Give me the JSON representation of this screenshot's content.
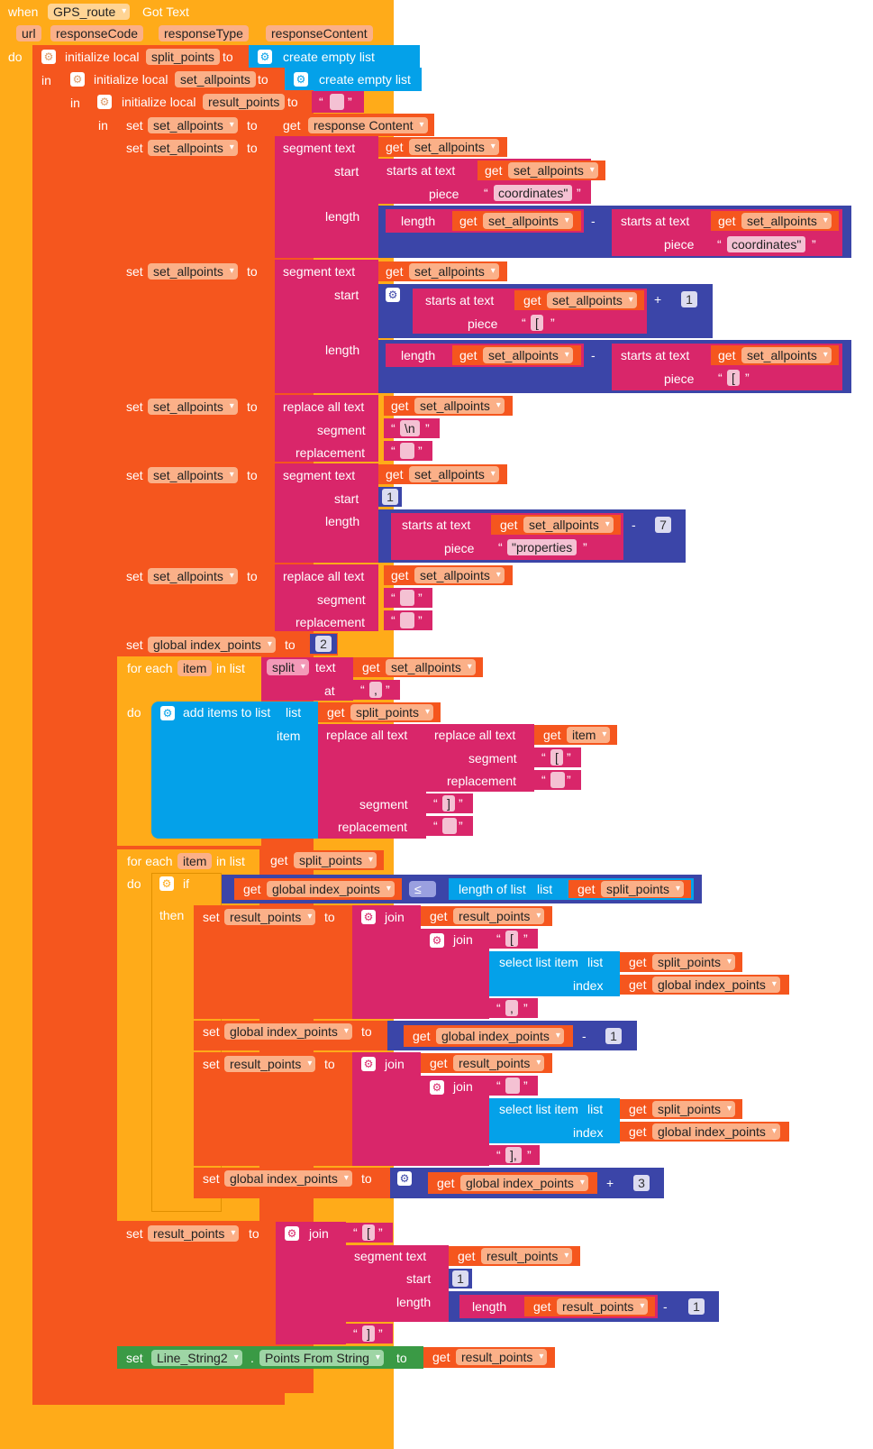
{
  "event": {
    "when": "when",
    "component": "GPS_route",
    "event_name": "Got Text",
    "params": [
      "url",
      "responseCode",
      "responseType",
      "responseContent"
    ],
    "do": "do"
  },
  "kw": {
    "in": "in",
    "to": "to",
    "set": "set",
    "get": "get",
    "init_local": "initialize local",
    "create_empty_list": "create empty list",
    "segment_text": "segment text",
    "start": "start",
    "length_label": "length",
    "starts_at_text": "starts at text",
    "piece": "piece",
    "length": "length",
    "replace_all_text": "replace all text",
    "segment": "segment",
    "replacement": "replacement",
    "for_each": "for each",
    "in_list": "in list",
    "split": "split",
    "text": "text",
    "at": "at",
    "do": "do",
    "add_items_to_list": "add items to list",
    "list": "list",
    "item_label": "item",
    "if": "if",
    "then": "then",
    "le": "≤",
    "length_of_list": "length of list",
    "join": "join",
    "select_list_item": "select list item",
    "index": "index",
    "minus": "-",
    "plus": "+",
    "dot": ".",
    "open_q": "“",
    "close_q": "”"
  },
  "vars": {
    "split_points": "split_points",
    "set_allpoints": "set_allpoints",
    "result_points": "result_points",
    "response_content": "response Content",
    "global_index_points": "global index_points",
    "item": "item"
  },
  "strings": {
    "empty": "",
    "coordinates": "coordinates\"",
    "lbracket": "[",
    "newline": "\\n",
    "properties": "\"properties",
    "comma": ",",
    "rbracket": "]",
    "close_arr": "],"
  },
  "nums": {
    "one": "1",
    "two": "2",
    "three": "3",
    "seven": "7"
  },
  "final": {
    "component": "Line_String2",
    "property": "Points From String"
  },
  "colors": {
    "event": "#ffab19",
    "variables": "#f5561e",
    "text": "#d9266a",
    "math": "#3b45a8",
    "lists": "#04a1e9",
    "component": "#3a9a45"
  }
}
